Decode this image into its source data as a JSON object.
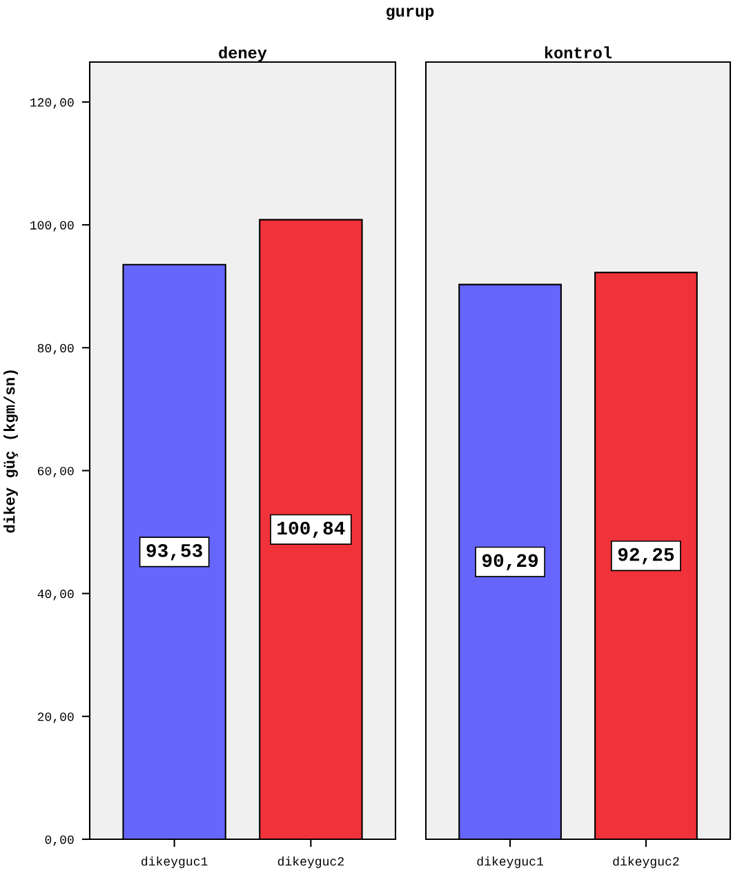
{
  "chart_data": [
    {
      "type": "bar",
      "title": "deney",
      "ylabel": "dikey güç (kgm/sn)",
      "annotations": [
        "gurup"
      ],
      "categories": [
        "dikeyguc1",
        "dikeyguc2"
      ],
      "values": [
        93.53,
        100.84
      ],
      "colors": [
        "#6666ff",
        "#f0323a"
      ],
      "value_labels": [
        "93,53",
        "100,84"
      ],
      "ylim": [
        0,
        126.5
      ],
      "yticks": [
        {
          "value": 0,
          "label": "0,00"
        },
        {
          "value": 20,
          "label": "20,00"
        },
        {
          "value": 40,
          "label": "40,00"
        },
        {
          "value": 60,
          "label": "60,00"
        },
        {
          "value": 80,
          "label": "80,00"
        },
        {
          "value": 100,
          "label": "100,00"
        },
        {
          "value": 120,
          "label": "120,00"
        }
      ],
      "grid": false,
      "legend": false
    },
    {
      "type": "bar",
      "title": "kontrol",
      "categories": [
        "dikeyguc1",
        "dikeyguc2"
      ],
      "values": [
        90.29,
        92.25
      ],
      "colors": [
        "#6666ff",
        "#f0323a"
      ],
      "value_labels": [
        "90,29",
        "92,25"
      ],
      "ylim": [
        0,
        126.5
      ],
      "tick_labels": "x",
      "grid": false,
      "legend": false
    }
  ]
}
